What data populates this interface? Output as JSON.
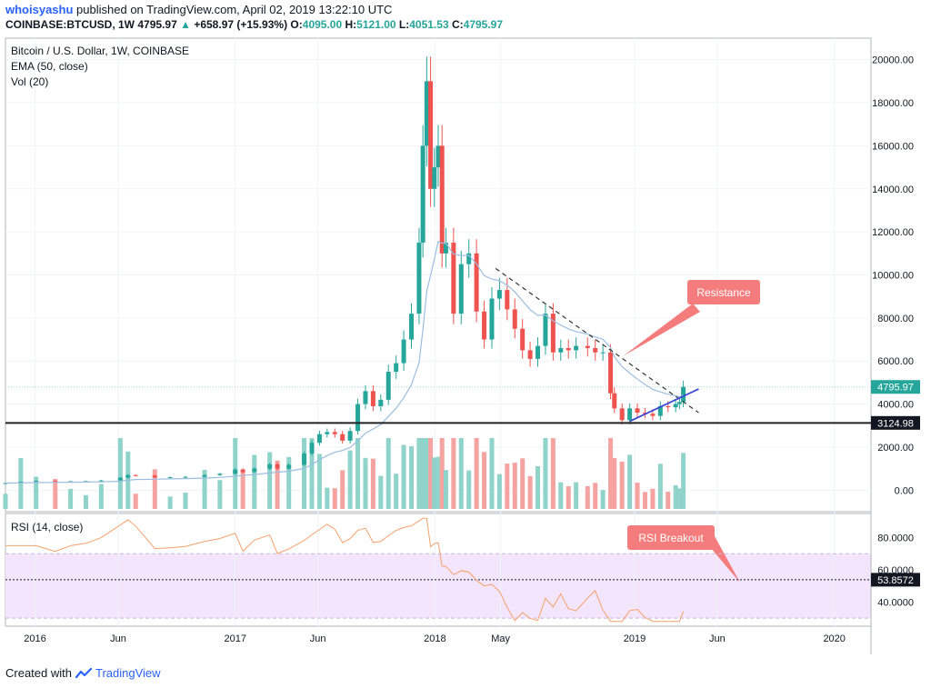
{
  "header": {
    "author": "whoisyashu",
    "published_text": "published on TradingView.com, April 02, 2019 13:22:10 UTC",
    "symbol": "COINBASE:BTCUSD, 1W",
    "last": "4795.97",
    "change_arrow": "▲",
    "change": "+658.97 (+15.93%)",
    "o_label": "O:",
    "o_val": "4095.00",
    "h_label": "H:",
    "h_val": "5121.00",
    "l_label": "L:",
    "l_val": "4051.53",
    "c_label": "C:",
    "c_val": "4795.97"
  },
  "footer": {
    "created_with": "Created with",
    "logo_icon": "tradingview-logo-icon",
    "brand": "TradingView"
  },
  "colors": {
    "up": "#26a69a",
    "down": "#ef5350",
    "vol_up": "#8fd3cb",
    "vol_down": "#f5a3a1",
    "ema": "#9cbde0",
    "rsi": "#f5a06b",
    "rsi_band": "#f3e5fb",
    "trend_dashed": "#333333",
    "support": "#3a47d6",
    "callout": "#f47c7c"
  },
  "chart_data": {
    "type": "candlestick",
    "legend": [
      "Bitcoin / U.S. Dollar, 1W, COINBASE",
      "EMA (50, close)",
      "Vol (20)"
    ],
    "price_axis": {
      "ticks": [
        "20000.00",
        "18000.00",
        "16000.00",
        "14000.00",
        "12000.00",
        "10000.00",
        "8000.00",
        "6000.00",
        "4000.00",
        "2000.00",
        "0.00"
      ],
      "tick_values": [
        20000,
        18000,
        16000,
        14000,
        12000,
        10000,
        8000,
        6000,
        4000,
        2000,
        0
      ],
      "range": [
        -1000,
        21000
      ]
    },
    "time_axis": {
      "labels": [
        "2016",
        "Jun",
        "2017",
        "Jun",
        "2018",
        "May",
        "2019",
        "Jun",
        "2020"
      ],
      "label_dates": [
        "2016-01-01",
        "2016-06-01",
        "2017-01-01",
        "2017-06-01",
        "2018-01-01",
        "2018-05-01",
        "2019-01-01",
        "2019-06-01",
        "2020-01-01"
      ],
      "range": [
        "2015-11-08",
        "2020-03-08"
      ]
    },
    "last_price_label": "4795.97",
    "horizontal_line_label": "3124.98",
    "horizontal_line_value": 3124.98,
    "weekly_closes": [
      [
        "2015-11-08",
        330
      ],
      [
        "2015-12-06",
        390
      ],
      [
        "2016-01-03",
        430
      ],
      [
        "2016-02-07",
        390
      ],
      [
        "2016-03-06",
        410
      ],
      [
        "2016-04-03",
        420
      ],
      [
        "2016-05-01",
        450
      ],
      [
        "2016-06-05",
        580
      ],
      [
        "2016-06-19",
        700
      ],
      [
        "2016-07-03",
        680
      ],
      [
        "2016-08-07",
        590
      ],
      [
        "2016-09-04",
        600
      ],
      [
        "2016-10-02",
        620
      ],
      [
        "2016-11-06",
        700
      ],
      [
        "2016-12-04",
        760
      ],
      [
        "2017-01-01",
        960
      ],
      [
        "2017-01-15",
        840
      ],
      [
        "2017-02-05",
        1000
      ],
      [
        "2017-03-05",
        1200
      ],
      [
        "2017-03-19",
        1000
      ],
      [
        "2017-04-09",
        1180
      ],
      [
        "2017-05-07",
        1700
      ],
      [
        "2017-05-21",
        2200
      ],
      [
        "2017-06-04",
        2600
      ],
      [
        "2017-06-18",
        2700
      ],
      [
        "2017-07-02",
        2600
      ],
      [
        "2017-07-16",
        2300
      ],
      [
        "2017-07-30",
        2750
      ],
      [
        "2017-08-13",
        4000
      ],
      [
        "2017-08-27",
        4600
      ],
      [
        "2017-09-10",
        3900
      ],
      [
        "2017-09-24",
        4200
      ],
      [
        "2017-10-08",
        5500
      ],
      [
        "2017-10-22",
        5900
      ],
      [
        "2017-11-05",
        7000
      ],
      [
        "2017-11-19",
        8200
      ],
      [
        "2017-12-03",
        11500
      ],
      [
        "2017-12-10",
        16000
      ],
      [
        "2017-12-17",
        19000
      ],
      [
        "2017-12-24",
        14000
      ],
      [
        "2017-12-31",
        15000
      ],
      [
        "2018-01-07",
        16000
      ],
      [
        "2018-01-14",
        11000
      ],
      [
        "2018-01-21",
        11500
      ],
      [
        "2018-02-04",
        8200
      ],
      [
        "2018-02-18",
        10500
      ],
      [
        "2018-03-04",
        11000
      ],
      [
        "2018-03-18",
        8300
      ],
      [
        "2018-04-01",
        7000
      ],
      [
        "2018-04-15",
        8900
      ],
      [
        "2018-04-29",
        9300
      ],
      [
        "2018-05-13",
        8400
      ],
      [
        "2018-05-27",
        7500
      ],
      [
        "2018-06-10",
        6500
      ],
      [
        "2018-06-24",
        6100
      ],
      [
        "2018-07-08",
        6700
      ],
      [
        "2018-07-22",
        8200
      ],
      [
        "2018-08-05",
        6400
      ],
      [
        "2018-08-19",
        6600
      ],
      [
        "2018-09-02",
        6500
      ],
      [
        "2018-09-16",
        6700
      ],
      [
        "2018-10-07",
        6600
      ],
      [
        "2018-10-21",
        6400
      ],
      [
        "2018-11-04",
        6400
      ],
      [
        "2018-11-18",
        4500
      ],
      [
        "2018-11-25",
        3800
      ],
      [
        "2018-12-09",
        3250
      ],
      [
        "2018-12-23",
        3800
      ],
      [
        "2019-01-06",
        3600
      ],
      [
        "2019-01-20",
        3550
      ],
      [
        "2019-02-03",
        3450
      ],
      [
        "2019-02-17",
        3900
      ],
      [
        "2019-03-03",
        3850
      ],
      [
        "2019-03-17",
        4000
      ],
      [
        "2019-03-24",
        4100
      ],
      [
        "2019-03-31",
        4795.97
      ]
    ],
    "rsi": {
      "label": "RSI (14, close)",
      "ticks": [
        "80.0000",
        "60.0000",
        "40.0000"
      ],
      "tick_values": [
        80,
        60,
        40
      ],
      "range": [
        25,
        95
      ],
      "band": [
        30,
        70
      ],
      "last_label": "53.8572",
      "last_value": 53.8572
    },
    "annotations": {
      "resistance": "Resistance",
      "rsi_breakout": "RSI Breakout"
    }
  }
}
